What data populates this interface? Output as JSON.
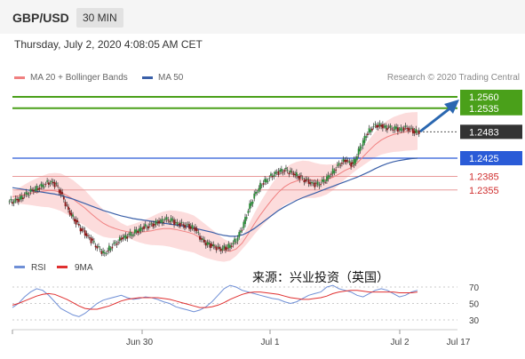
{
  "header": {
    "symbol": "GBP/USD",
    "timeframe": "30 MIN"
  },
  "datetime": "Thursday, July 2, 2020 4:08:05 AM CET",
  "legend": [
    {
      "label": "MA 20 + Bollinger Bands",
      "color": "#f08080"
    },
    {
      "label": "MA 50",
      "color": "#3a5fa8"
    }
  ],
  "copyright": "Research © 2020 Trading Central",
  "source_note": "来源：兴业投资（英国）",
  "rsi_legend": [
    {
      "label": "RSI",
      "color": "#6f8fd6"
    },
    {
      "label": "9MA",
      "color": "#e03030"
    }
  ],
  "chart_data": {
    "type": "candlestick",
    "x_ticks": [
      "Jun 30",
      "Jul 1",
      "Jul 2",
      "Jul 17"
    ],
    "price_levels": [
      {
        "value": 1.256,
        "label": "1.2560",
        "kind": "resistance",
        "color": "#4aa01a"
      },
      {
        "value": 1.2535,
        "label": "1.2535",
        "kind": "resistance",
        "color": "#4aa01a"
      },
      {
        "value": 1.2483,
        "label": "1.2483",
        "kind": "last-price",
        "color": "#333333"
      },
      {
        "value": 1.2425,
        "label": "1.2425",
        "kind": "pivot",
        "color": "#2a5bd7"
      },
      {
        "value": 1.2385,
        "label": "1.2385",
        "kind": "support",
        "color": "#d03030"
      },
      {
        "value": 1.2355,
        "label": "1.2355",
        "kind": "support",
        "color": "#d03030"
      }
    ],
    "price_range": [
      1.215,
      1.26
    ],
    "price_series": [
      1.233,
      1.2335,
      1.2345,
      1.2355,
      1.236,
      1.2368,
      1.2372,
      1.2365,
      1.234,
      1.231,
      1.229,
      1.227,
      1.2255,
      1.224,
      1.2225,
      1.2215,
      1.223,
      1.224,
      1.225,
      1.2255,
      1.2262,
      1.227,
      1.2275,
      1.228,
      1.2285,
      1.229,
      1.2288,
      1.228,
      1.2278,
      1.2275,
      1.227,
      1.2245,
      1.2235,
      1.223,
      1.2225,
      1.2228,
      1.2235,
      1.225,
      1.228,
      1.232,
      1.235,
      1.237,
      1.238,
      1.239,
      1.2395,
      1.2398,
      1.2393,
      1.2386,
      1.2378,
      1.237,
      1.2366,
      1.2372,
      1.2385,
      1.24,
      1.2415,
      1.242,
      1.241,
      1.244,
      1.247,
      1.249,
      1.2498,
      1.2495,
      1.2492,
      1.249,
      1.2488,
      1.2492,
      1.2485,
      1.2483
    ],
    "ma20": [
      1.234,
      1.2342,
      1.2345,
      1.2348,
      1.235,
      1.2352,
      1.2354,
      1.2353,
      1.235,
      1.2343,
      1.2335,
      1.2325,
      1.2315,
      1.2303,
      1.2292,
      1.2282,
      1.2275,
      1.227,
      1.2266,
      1.2263,
      1.2262,
      1.2262,
      1.2263,
      1.2265,
      1.2268,
      1.227,
      1.227,
      1.2268,
      1.2265,
      1.2262,
      1.2258,
      1.225,
      1.2242,
      1.2235,
      1.2228,
      1.2222,
      1.222,
      1.2225,
      1.2238,
      1.2258,
      1.228,
      1.23,
      1.2318,
      1.2335,
      1.235,
      1.2362,
      1.237,
      1.2375,
      1.2378,
      1.2378,
      1.2376,
      1.2376,
      1.2378,
      1.2383,
      1.239,
      1.2398,
      1.2404,
      1.2414,
      1.2428,
      1.2442,
      1.2455,
      1.2465,
      1.2472,
      1.2477,
      1.248,
      1.2483,
      1.2484,
      1.2485
    ],
    "ma50": [
      1.236,
      1.2358,
      1.2356,
      1.2354,
      1.2352,
      1.235,
      1.2348,
      1.2346,
      1.2343,
      1.2339,
      1.2335,
      1.233,
      1.2325,
      1.232,
      1.2315,
      1.231,
      1.2306,
      1.2302,
      1.2298,
      1.2295,
      1.2292,
      1.229,
      1.2288,
      1.2286,
      1.2284,
      1.2282,
      1.228,
      1.2278,
      1.2276,
      1.2274,
      1.2271,
      1.2268,
      1.2265,
      1.2262,
      1.2258,
      1.2255,
      1.2253,
      1.2253,
      1.2256,
      1.2262,
      1.227,
      1.228,
      1.229,
      1.23,
      1.231,
      1.2318,
      1.2325,
      1.2332,
      1.2338,
      1.2343,
      1.2348,
      1.2353,
      1.2358,
      1.2363,
      1.2368,
      1.2373,
      1.2378,
      1.2383,
      1.2389,
      1.2395,
      1.2402,
      1.2408,
      1.2413,
      1.2417,
      1.242,
      1.2422,
      1.2424,
      1.2425
    ],
    "rsi_ticks": [
      70,
      50,
      30
    ],
    "rsi_range": [
      20,
      80
    ],
    "rsi": [
      45,
      50,
      58,
      64,
      68,
      66,
      60,
      52,
      44,
      40,
      36,
      34,
      38,
      44,
      50,
      54,
      56,
      58,
      60,
      57,
      55,
      56,
      58,
      57,
      55,
      52,
      50,
      46,
      44,
      42,
      40,
      42,
      46,
      52,
      60,
      68,
      72,
      70,
      66,
      64,
      62,
      60,
      58,
      56,
      55,
      52,
      50,
      52,
      56,
      60,
      62,
      64,
      70,
      72,
      68,
      66,
      64,
      60,
      58,
      62,
      66,
      68,
      66,
      62,
      58,
      60,
      64,
      66
    ],
    "rsi_ma": [
      48,
      50,
      53,
      56,
      59,
      61,
      62,
      61,
      58,
      55,
      51,
      47,
      44,
      43,
      43,
      45,
      47,
      50,
      53,
      55,
      56,
      57,
      57,
      57,
      57,
      56,
      55,
      53,
      51,
      49,
      47,
      45,
      45,
      46,
      48,
      51,
      55,
      58,
      61,
      63,
      64,
      64,
      63,
      62,
      61,
      59,
      57,
      56,
      55,
      55,
      56,
      57,
      59,
      62,
      64,
      65,
      66,
      66,
      65,
      64,
      64,
      64,
      64,
      64,
      63,
      63,
      63,
      64
    ]
  }
}
